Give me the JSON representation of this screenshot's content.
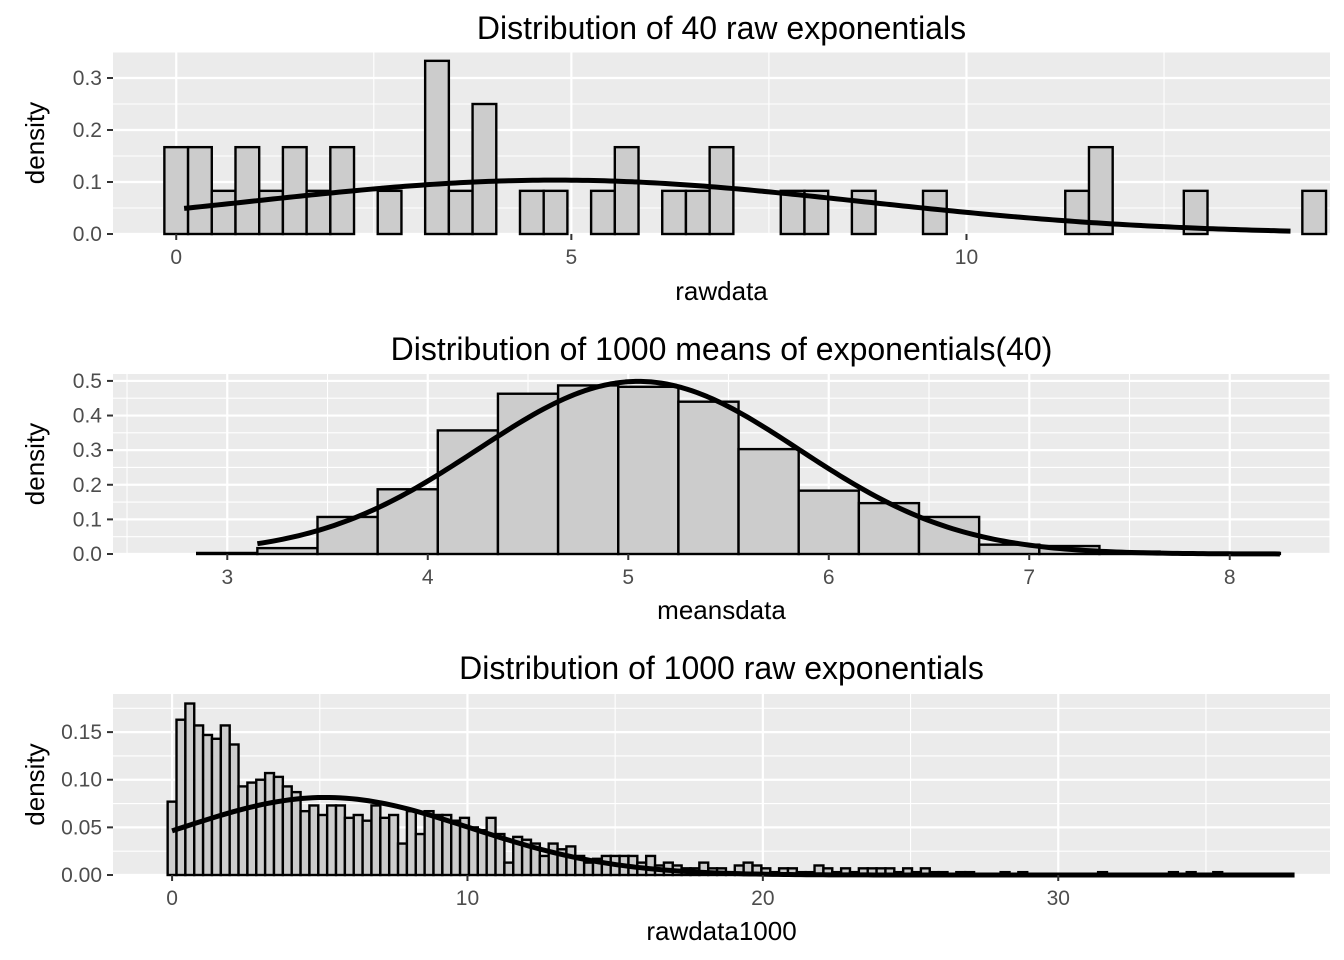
{
  "chart_data": [
    {
      "type": "bar",
      "subtype": "histogram-with-density-curve",
      "title": "Distribution of 40 raw exponentials",
      "xlabel": "rawdata",
      "ylabel": "density",
      "xlim": [
        -0.8,
        14.6
      ],
      "ylim": [
        0,
        0.35
      ],
      "xticks": [
        0,
        5,
        10
      ],
      "yticks": [
        0.0,
        0.1,
        0.2,
        0.3
      ],
      "ytick_labels": [
        "0.0",
        "0.1",
        "0.2",
        "0.3"
      ],
      "bin_width": 0.3,
      "bins": [
        {
          "x0": -0.15,
          "density": 0.167
        },
        {
          "x0": 0.15,
          "density": 0.167
        },
        {
          "x0": 0.45,
          "density": 0.083
        },
        {
          "x0": 0.75,
          "density": 0.167
        },
        {
          "x0": 1.05,
          "density": 0.083
        },
        {
          "x0": 1.35,
          "density": 0.167
        },
        {
          "x0": 1.65,
          "density": 0.083
        },
        {
          "x0": 1.95,
          "density": 0.167
        },
        {
          "x0": 2.55,
          "density": 0.083
        },
        {
          "x0": 3.15,
          "density": 0.333
        },
        {
          "x0": 3.45,
          "density": 0.083
        },
        {
          "x0": 3.75,
          "density": 0.25
        },
        {
          "x0": 4.35,
          "density": 0.083
        },
        {
          "x0": 4.65,
          "density": 0.083
        },
        {
          "x0": 5.25,
          "density": 0.083
        },
        {
          "x0": 5.55,
          "density": 0.167
        },
        {
          "x0": 6.15,
          "density": 0.083
        },
        {
          "x0": 6.45,
          "density": 0.083
        },
        {
          "x0": 6.75,
          "density": 0.167
        },
        {
          "x0": 7.65,
          "density": 0.083
        },
        {
          "x0": 7.95,
          "density": 0.083
        },
        {
          "x0": 8.55,
          "density": 0.083
        },
        {
          "x0": 9.45,
          "density": 0.083
        },
        {
          "x0": 11.25,
          "density": 0.083
        },
        {
          "x0": 11.55,
          "density": 0.167
        },
        {
          "x0": 12.75,
          "density": 0.083
        },
        {
          "x0": 14.25,
          "density": 0.083
        }
      ],
      "curve": {
        "mean": 4.8,
        "sd": 3.85,
        "x_from": 0.1,
        "x_to": 14.1
      },
      "grid": true
    },
    {
      "type": "bar",
      "subtype": "histogram-with-density-curve",
      "title": "Distribution of 1000 means of exponentials(40)",
      "xlabel": "meansdata",
      "ylabel": "density",
      "xlim": [
        2.43,
        8.5
      ],
      "ylim": [
        0,
        0.52
      ],
      "xticks": [
        3,
        4,
        5,
        6,
        7,
        8
      ],
      "yticks": [
        0.0,
        0.1,
        0.2,
        0.3,
        0.4,
        0.5
      ],
      "ytick_labels": [
        "0.0",
        "0.1",
        "0.2",
        "0.3",
        "0.4",
        "0.5"
      ],
      "bin_width": 0.3,
      "bins": [
        {
          "x0": 2.85,
          "density": 0.003
        },
        {
          "x0": 3.15,
          "density": 0.017
        },
        {
          "x0": 3.45,
          "density": 0.107
        },
        {
          "x0": 3.75,
          "density": 0.187
        },
        {
          "x0": 4.05,
          "density": 0.357
        },
        {
          "x0": 4.35,
          "density": 0.463
        },
        {
          "x0": 4.65,
          "density": 0.487
        },
        {
          "x0": 4.95,
          "density": 0.483
        },
        {
          "x0": 5.25,
          "density": 0.44
        },
        {
          "x0": 5.55,
          "density": 0.303
        },
        {
          "x0": 5.85,
          "density": 0.183
        },
        {
          "x0": 6.15,
          "density": 0.147
        },
        {
          "x0": 6.45,
          "density": 0.107
        },
        {
          "x0": 6.75,
          "density": 0.027
        },
        {
          "x0": 7.05,
          "density": 0.023
        },
        {
          "x0": 7.35,
          "density": 0.007
        },
        {
          "x0": 7.65,
          "density": 0.003
        },
        {
          "x0": 7.95,
          "density": 0.003
        }
      ],
      "curve": {
        "mean": 5.05,
        "sd": 0.8,
        "x_from": 3.15,
        "x_to": 8.25
      },
      "grid": true
    },
    {
      "type": "bar",
      "subtype": "histogram-with-density-curve",
      "title": "Distribution of 1000 raw exponentials",
      "xlabel": "rawdata1000",
      "ylabel": "density",
      "xlim": [
        -2,
        39.2
      ],
      "ylim": [
        0,
        0.19
      ],
      "xticks": [
        0,
        10,
        20,
        30
      ],
      "yticks": [
        0.0,
        0.05,
        0.1,
        0.15
      ],
      "ytick_labels": [
        "0.00",
        "0.05",
        "0.10",
        "0.15"
      ],
      "bin_width": 0.3,
      "bin_start": -0.15,
      "densities": [
        0.077,
        0.163,
        0.18,
        0.157,
        0.147,
        0.143,
        0.157,
        0.137,
        0.093,
        0.097,
        0.1,
        0.107,
        0.103,
        0.093,
        0.087,
        0.067,
        0.073,
        0.063,
        0.073,
        0.073,
        0.06,
        0.063,
        0.057,
        0.073,
        0.06,
        0.063,
        0.033,
        0.067,
        0.043,
        0.067,
        0.063,
        0.063,
        0.057,
        0.06,
        0.05,
        0.047,
        0.06,
        0.043,
        0.013,
        0.04,
        0.037,
        0.033,
        0.02,
        0.033,
        0.027,
        0.03,
        0.02,
        0.013,
        0.017,
        0.02,
        0.02,
        0.02,
        0.02,
        0.013,
        0.02,
        0.01,
        0.013,
        0.01,
        0.007,
        0.007,
        0.013,
        0.007,
        0.007,
        0.003,
        0.01,
        0.013,
        0.01,
        0.007,
        0.003,
        0.007,
        0.007,
        0.003,
        0.003,
        0.01,
        0.007,
        0.003,
        0.007,
        0.003,
        0.007,
        0.007,
        0.007,
        0.007,
        0.003,
        0.007,
        0.003,
        0.007,
        0.003,
        0.003,
        0.0,
        0.003,
        0.003,
        0.0,
        0.0,
        0.0,
        0.003,
        0.0,
        0.003,
        0.0,
        0.0,
        0.0,
        0.0,
        0.0,
        0.0,
        0.0,
        0.0,
        0.003,
        0.0,
        0.0,
        0.0,
        0.0,
        0.0,
        0.0,
        0.0,
        0.003,
        0.0,
        0.003,
        0.0,
        0.0,
        0.003,
        0.0,
        0.0,
        0.0,
        0.0,
        0.0,
        0.0,
        0.0,
        0.0,
        0.0,
        0.0,
        0.0,
        0.0,
        0.0,
        0.0,
        0.0,
        0.0,
        0.0,
        0.0,
        0.0,
        0.0,
        0.003,
        0.0,
        0.0,
        0.0,
        0.0,
        0.0,
        0.0,
        0.0,
        0.0,
        0.0,
        0.0,
        0.0,
        0.0,
        0.0,
        0.0,
        0.0,
        0.0,
        0.0,
        0.0,
        0.0,
        0.0,
        0.0,
        0.0,
        0.0,
        0.0,
        0.0,
        0.0,
        0.0,
        0.0,
        0.0,
        0.0,
        0.0,
        0.0,
        0.0,
        0.0,
        0.0,
        0.0,
        0.0,
        0.0,
        0.0,
        0.0,
        0.0,
        0.0,
        0.0,
        0.0,
        0.0,
        0.0,
        0.0,
        0.003
      ],
      "curve": {
        "mean": 5.2,
        "sd": 4.9,
        "x_from": 0.0,
        "x_to": 38.0
      },
      "grid": true
    }
  ]
}
